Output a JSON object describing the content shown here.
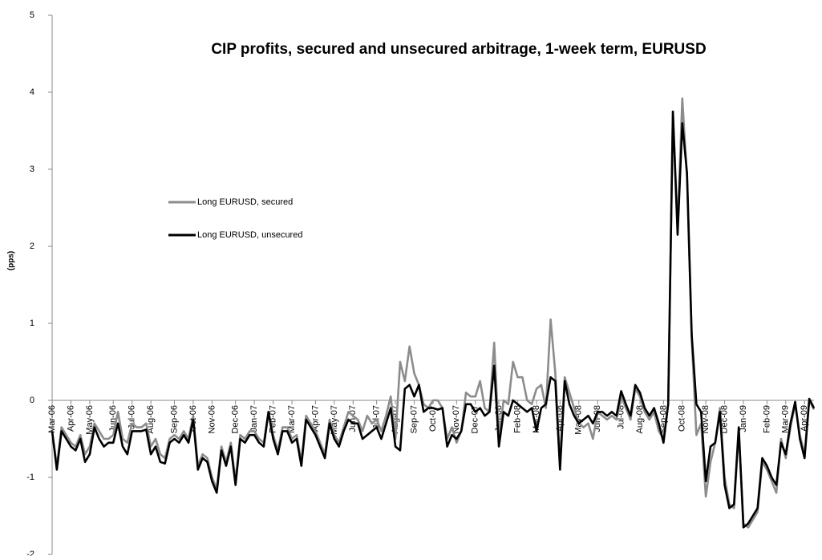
{
  "chart_data": {
    "type": "line",
    "title": "CIP profits, secured and unsecured arbitrage, 1-week term, EURUSD",
    "y_label": "(pps)",
    "categories": [
      "Mar-06",
      null,
      null,
      null,
      "Apr-06",
      null,
      null,
      null,
      "May-06",
      null,
      null,
      null,
      null,
      "Jun-06",
      null,
      null,
      null,
      "Jul-06",
      null,
      null,
      null,
      "Aug-06",
      null,
      null,
      null,
      null,
      "Sep-06",
      null,
      null,
      null,
      "Oct-06",
      null,
      null,
      null,
      "Nov-06",
      null,
      null,
      null,
      null,
      "Dec-06",
      null,
      null,
      null,
      "Jan-07",
      null,
      null,
      null,
      "Feb-07",
      null,
      null,
      null,
      "Mar-07",
      null,
      null,
      null,
      null,
      "Apr-07",
      null,
      null,
      null,
      "May-07",
      null,
      null,
      null,
      "Jun-07",
      null,
      null,
      null,
      null,
      "Jul-07",
      null,
      null,
      null,
      "Aug-07",
      null,
      null,
      null,
      "Sep-07",
      null,
      null,
      null,
      "Oct-07",
      null,
      null,
      null,
      null,
      "Nov-07",
      null,
      null,
      null,
      "Dec-07",
      null,
      null,
      null,
      null,
      "Jan-08",
      null,
      null,
      null,
      "Feb-08",
      null,
      null,
      null,
      "Mar-08",
      null,
      null,
      null,
      null,
      "Apr-08",
      null,
      null,
      null,
      "May-08",
      null,
      null,
      null,
      "Jun-08",
      null,
      null,
      null,
      null,
      "Jul-08",
      null,
      null,
      null,
      "Aug-08",
      null,
      null,
      null,
      null,
      "Sep-08",
      null,
      null,
      null,
      "Oct-08",
      null,
      null,
      null,
      null,
      "Nov-08",
      null,
      null,
      null,
      "Dec-08",
      null,
      null,
      null,
      "Jan-09",
      null,
      null,
      null,
      null,
      "Feb-09",
      null,
      null,
      null,
      "Mar-09",
      null,
      null,
      null,
      "Apr-09",
      null,
      null
    ],
    "series": [
      {
        "name": "Long EURUSD, secured",
        "color": "#8c8c8c",
        "values": [
          -0.4,
          -0.85,
          -0.35,
          -0.45,
          -0.55,
          -0.6,
          -0.45,
          -0.7,
          -0.6,
          -0.3,
          -0.4,
          -0.5,
          -0.5,
          -0.45,
          -0.15,
          -0.5,
          -0.55,
          -0.3,
          -0.35,
          -0.35,
          -0.3,
          -0.6,
          -0.5,
          -0.7,
          -0.75,
          -0.5,
          -0.45,
          -0.5,
          -0.4,
          -0.5,
          -0.2,
          -0.85,
          -0.7,
          -0.75,
          -1.0,
          -1.15,
          -0.6,
          -0.8,
          -0.55,
          -1.05,
          -0.45,
          -0.5,
          -0.4,
          -0.4,
          -0.5,
          -0.55,
          -0.15,
          -0.45,
          -0.65,
          -0.35,
          -0.35,
          -0.5,
          -0.45,
          -0.8,
          -0.2,
          -0.3,
          -0.4,
          -0.55,
          -0.7,
          -0.25,
          -0.45,
          -0.55,
          -0.35,
          -0.15,
          -0.2,
          -0.25,
          -0.4,
          -0.2,
          -0.3,
          -0.25,
          -0.4,
          -0.2,
          0.05,
          -0.5,
          0.5,
          0.25,
          0.7,
          0.35,
          0.2,
          -0.05,
          -0.1,
          0.0,
          0.0,
          -0.1,
          -0.5,
          -0.35,
          -0.55,
          -0.4,
          0.1,
          0.05,
          0.05,
          0.25,
          -0.1,
          -0.15,
          0.75,
          -0.5,
          0.0,
          -0.05,
          0.5,
          0.3,
          0.3,
          0.0,
          -0.05,
          0.15,
          0.2,
          -0.1,
          1.05,
          0.35,
          -0.8,
          0.3,
          0.1,
          -0.1,
          -0.3,
          -0.35,
          -0.3,
          -0.5,
          -0.15,
          -0.2,
          -0.25,
          -0.2,
          -0.25,
          0.05,
          -0.1,
          -0.25,
          0.15,
          0.05,
          -0.15,
          -0.25,
          -0.15,
          -0.4,
          -0.5,
          -0.05,
          3.75,
          2.25,
          3.92,
          2.9,
          0.8,
          -0.45,
          -0.3,
          -1.25,
          -0.8,
          -0.55,
          -0.1,
          -1.0,
          -1.35,
          -1.4,
          -0.4,
          -1.6,
          -1.65,
          -1.55,
          -1.45,
          -0.8,
          -0.9,
          -1.05,
          -1.2,
          -0.5,
          -0.75,
          -0.35,
          -0.05,
          -0.45,
          -0.7,
          0.0,
          -0.12
        ]
      },
      {
        "name": "Long EURUSD, unsecured",
        "color": "#000000",
        "values": [
          -0.4,
          -0.9,
          -0.4,
          -0.5,
          -0.6,
          -0.65,
          -0.5,
          -0.8,
          -0.7,
          -0.35,
          -0.5,
          -0.6,
          -0.55,
          -0.55,
          -0.3,
          -0.6,
          -0.7,
          -0.4,
          -0.4,
          -0.4,
          -0.38,
          -0.7,
          -0.6,
          -0.8,
          -0.82,
          -0.55,
          -0.5,
          -0.55,
          -0.45,
          -0.55,
          -0.25,
          -0.9,
          -0.75,
          -0.8,
          -1.05,
          -1.2,
          -0.65,
          -0.85,
          -0.6,
          -1.1,
          -0.5,
          -0.55,
          -0.45,
          -0.45,
          -0.55,
          -0.6,
          -0.15,
          -0.5,
          -0.7,
          -0.4,
          -0.4,
          -0.55,
          -0.5,
          -0.85,
          -0.25,
          -0.35,
          -0.45,
          -0.6,
          -0.75,
          -0.3,
          -0.5,
          -0.6,
          -0.4,
          -0.25,
          -0.3,
          -0.3,
          -0.5,
          -0.45,
          -0.4,
          -0.35,
          -0.5,
          -0.3,
          -0.1,
          -0.6,
          -0.65,
          0.15,
          0.2,
          0.05,
          0.2,
          -0.15,
          -0.1,
          -0.1,
          -0.12,
          -0.1,
          -0.6,
          -0.45,
          -0.5,
          -0.4,
          -0.05,
          -0.05,
          -0.15,
          -0.1,
          -0.2,
          -0.15,
          0.45,
          -0.6,
          -0.15,
          -0.2,
          0.0,
          -0.05,
          -0.1,
          -0.15,
          -0.1,
          -0.4,
          -0.1,
          -0.05,
          0.3,
          0.25,
          -0.9,
          0.25,
          -0.05,
          -0.2,
          -0.3,
          -0.25,
          -0.2,
          -0.3,
          -0.15,
          -0.15,
          -0.2,
          -0.15,
          -0.2,
          0.12,
          -0.05,
          -0.2,
          0.2,
          0.1,
          -0.1,
          -0.2,
          -0.1,
          -0.3,
          -0.55,
          -0.05,
          3.75,
          2.15,
          3.6,
          2.95,
          0.85,
          -0.05,
          -0.15,
          -1.05,
          -0.6,
          -0.55,
          -0.15,
          -1.1,
          -1.4,
          -1.35,
          -0.35,
          -1.65,
          -1.6,
          -1.5,
          -1.4,
          -0.75,
          -0.85,
          -1.0,
          -1.1,
          -0.55,
          -0.7,
          -0.3,
          -0.02,
          -0.5,
          -0.75,
          0.02,
          -0.1
        ]
      }
    ],
    "ylim": [
      -2,
      5
    ],
    "yticks": [
      -2,
      -1,
      0,
      1,
      2,
      3,
      4,
      5
    ]
  }
}
